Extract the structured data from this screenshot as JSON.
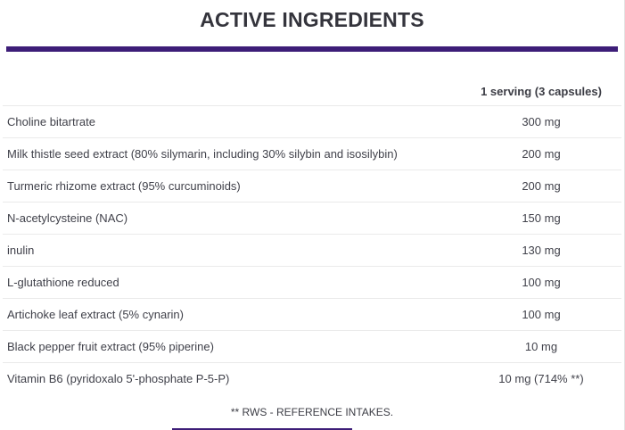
{
  "page": {
    "title": "ACTIVE INGREDIENTS",
    "footnote": "** RWS - REFERENCE INTAKES."
  },
  "table": {
    "serving_header": "1 serving (3 capsules)",
    "rows": [
      {
        "name": "Choline bitartrate",
        "amount": "300 mg"
      },
      {
        "name": "Milk thistle seed extract (80% silymarin, including 30% silybin and isosilybin)",
        "amount": "200 mg"
      },
      {
        "name": "Turmeric rhizome extract (95% curcuminoids)",
        "amount": "200 mg"
      },
      {
        "name": "N-acetylcysteine (NAC)",
        "amount": "150 mg"
      },
      {
        "name": "inulin",
        "amount": "130 mg"
      },
      {
        "name": "L-glutathione reduced",
        "amount": "100 mg"
      },
      {
        "name": "Artichoke leaf extract (5% cynarin)",
        "amount": "100 mg"
      },
      {
        "name": "Black pepper fruit extract (95% piperine)",
        "amount": "10 mg"
      },
      {
        "name": "Vitamin B6 (pyridoxalo 5'-phosphate P-5-P)",
        "amount": "10 mg (714% **)"
      }
    ]
  },
  "colors": {
    "accent_purple": "#3d1d78",
    "text": "#40414a",
    "separator": "#eaeaea"
  }
}
